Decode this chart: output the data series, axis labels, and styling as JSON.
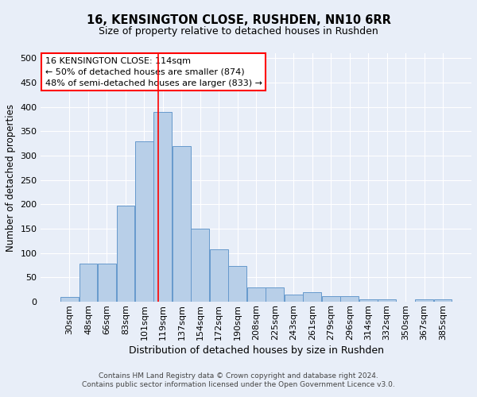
{
  "title": "16, KENSINGTON CLOSE, RUSHDEN, NN10 6RR",
  "subtitle": "Size of property relative to detached houses in Rushden",
  "xlabel": "Distribution of detached houses by size in Rushden",
  "ylabel": "Number of detached properties",
  "categories": [
    "30sqm",
    "48sqm",
    "66sqm",
    "83sqm",
    "101sqm",
    "119sqm",
    "137sqm",
    "154sqm",
    "172sqm",
    "190sqm",
    "208sqm",
    "225sqm",
    "243sqm",
    "261sqm",
    "279sqm",
    "296sqm",
    "314sqm",
    "332sqm",
    "350sqm",
    "367sqm",
    "385sqm"
  ],
  "values": [
    10,
    78,
    78,
    198,
    330,
    390,
    320,
    150,
    108,
    73,
    30,
    30,
    15,
    20,
    12,
    12,
    5,
    5,
    0,
    5,
    5
  ],
  "bar_color": "#b8cfe8",
  "bar_edge_color": "#6699cc",
  "bar_width": 0.97,
  "vline_x": 4.75,
  "vline_color": "red",
  "annotation_line1": "16 KENSINGTON CLOSE: 114sqm",
  "annotation_line2": "← 50% of detached houses are smaller (874)",
  "annotation_line3": "48% of semi-detached houses are larger (833) →",
  "annotation_box_color": "white",
  "annotation_box_edge": "red",
  "ylim": [
    0,
    510
  ],
  "yticks": [
    0,
    50,
    100,
    150,
    200,
    250,
    300,
    350,
    400,
    450,
    500
  ],
  "footer1": "Contains HM Land Registry data © Crown copyright and database right 2024.",
  "footer2": "Contains public sector information licensed under the Open Government Licence v3.0.",
  "bg_color": "#e8eef8",
  "plot_bg_color": "#e8eef8",
  "grid_color": "#ffffff",
  "title_fontsize": 10.5,
  "subtitle_fontsize": 9,
  "ylabel_fontsize": 8.5,
  "xlabel_fontsize": 9,
  "tick_fontsize": 8,
  "annotation_fontsize": 8
}
